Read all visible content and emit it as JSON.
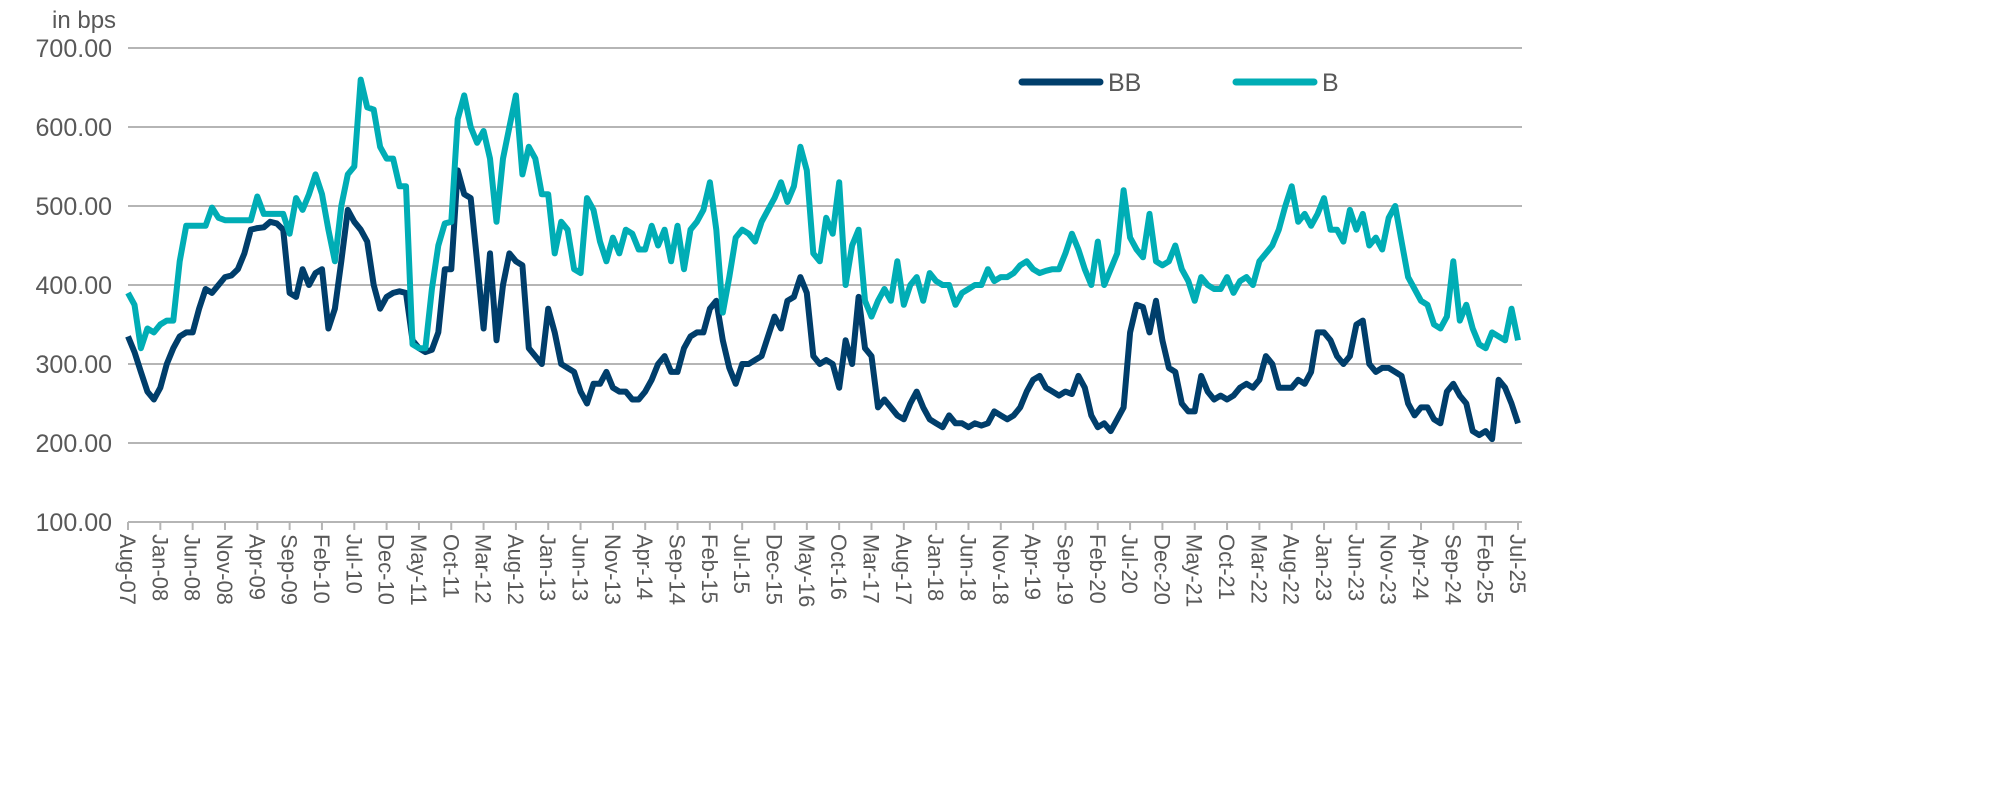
{
  "chart_data": {
    "type": "line",
    "title": "",
    "ylabel": "in bps",
    "xlabel": "",
    "ylim": [
      100,
      700
    ],
    "yticks": [
      "100.00",
      "200.00",
      "300.00",
      "400.00",
      "500.00",
      "600.00",
      "700.00"
    ],
    "grid": true,
    "legend_position": "top-right",
    "x_start": "Aug-07",
    "x_end": "Jul-25",
    "x_frequency": "monthly",
    "xtick_labels": [
      "Aug-07",
      "Jan-08",
      "Jun-08",
      "Nov-08",
      "Apr-09",
      "Sep-09",
      "Feb-10",
      "Jul-10",
      "Dec-10",
      "May-11",
      "Oct-11",
      "Mar-12",
      "Aug-12",
      "Jan-13",
      "Jun-13",
      "Nov-13",
      "Apr-14",
      "Sep-14",
      "Feb-15",
      "Jul-15",
      "Dec-15",
      "May-16",
      "Oct-16",
      "Mar-17",
      "Aug-17",
      "Jan-18",
      "Jun-18",
      "Nov-18",
      "Apr-19",
      "Sep-19",
      "Feb-20",
      "Jul-20",
      "Dec-20",
      "May-21",
      "Oct-21",
      "Mar-22",
      "Aug-22",
      "Jan-23",
      "Jun-23",
      "Nov-23",
      "Apr-24",
      "Sep-24",
      "Feb-25",
      "Jul-25"
    ],
    "series": [
      {
        "name": "BB",
        "color": "#003e6b",
        "values": [
          335,
          315,
          290,
          265,
          255,
          270,
          300,
          320,
          335,
          340,
          340,
          370,
          395,
          390,
          400,
          410,
          412,
          420,
          440,
          470,
          472,
          473,
          480,
          478,
          470,
          390,
          385,
          420,
          400,
          415,
          420,
          345,
          370,
          430,
          495,
          480,
          470,
          455,
          400,
          370,
          385,
          390,
          392,
          390,
          330,
          320,
          315,
          318,
          340,
          420,
          420,
          545,
          515,
          510,
          430,
          345,
          440,
          330,
          400,
          440,
          430,
          425,
          320,
          310,
          300,
          370,
          340,
          300,
          295,
          290,
          265,
          250,
          275,
          275,
          290,
          270,
          265,
          265,
          255,
          255,
          265,
          280,
          300,
          310,
          290,
          290,
          320,
          335,
          340,
          340,
          370,
          380,
          330,
          295,
          275,
          300,
          300,
          305,
          310,
          335,
          360,
          345,
          380,
          385,
          410,
          390,
          310,
          300,
          305,
          300,
          270,
          330,
          300,
          385,
          320,
          310,
          245,
          255,
          245,
          235,
          230,
          250,
          265,
          245,
          230,
          225,
          220,
          235,
          225,
          225,
          220,
          225,
          222,
          225,
          240,
          235,
          230,
          235,
          245,
          265,
          280,
          285,
          270,
          265,
          260,
          265,
          262,
          285,
          270,
          235,
          220,
          225,
          215,
          230,
          245,
          340,
          375,
          372,
          340,
          380,
          330,
          295,
          290,
          250,
          240,
          240,
          285,
          265,
          255,
          260,
          255,
          260,
          270,
          275,
          270,
          280,
          310,
          300,
          270,
          270,
          270,
          280,
          275,
          290,
          340,
          340,
          330,
          310,
          300,
          310,
          350,
          355,
          300,
          290,
          295,
          295,
          290,
          285,
          250,
          235,
          245,
          245,
          230,
          225,
          265,
          275,
          260,
          250,
          215,
          210,
          215,
          205,
          280,
          270,
          250,
          225
        ]
      },
      {
        "name": "B",
        "color": "#00adb5",
        "values": [
          390,
          375,
          320,
          345,
          340,
          350,
          355,
          355,
          430,
          475,
          475,
          475,
          475,
          498,
          485,
          482,
          482,
          482,
          482,
          482,
          512,
          490,
          490,
          490,
          490,
          465,
          510,
          495,
          515,
          540,
          515,
          470,
          430,
          500,
          540,
          550,
          660,
          625,
          622,
          575,
          560,
          560,
          525,
          525,
          325,
          320,
          320,
          395,
          450,
          478,
          480,
          610,
          640,
          600,
          580,
          595,
          560,
          480,
          560,
          600,
          640,
          540,
          575,
          560,
          515,
          515,
          440,
          480,
          470,
          420,
          415,
          510,
          495,
          455,
          430,
          460,
          440,
          470,
          465,
          445,
          445,
          475,
          450,
          470,
          430,
          475,
          420,
          470,
          480,
          495,
          530,
          470,
          365,
          410,
          460,
          470,
          465,
          455,
          480,
          495,
          510,
          530,
          505,
          525,
          575,
          545,
          440,
          430,
          485,
          465,
          530,
          400,
          450,
          470,
          380,
          360,
          380,
          395,
          380,
          430,
          375,
          400,
          410,
          380,
          415,
          405,
          400,
          400,
          375,
          390,
          395,
          400,
          400,
          420,
          405,
          410,
          410,
          415,
          425,
          430,
          420,
          415,
          418,
          420,
          420,
          440,
          465,
          445,
          420,
          400,
          455,
          400,
          420,
          440,
          520,
          460,
          445,
          435,
          490,
          430,
          425,
          430,
          450,
          420,
          405,
          380,
          410,
          400,
          395,
          395,
          410,
          390,
          405,
          410,
          400,
          430,
          440,
          450,
          470,
          500,
          525,
          480,
          490,
          475,
          490,
          510,
          470,
          470,
          455,
          495,
          470,
          490,
          450,
          460,
          445,
          485,
          500,
          455,
          410,
          395,
          380,
          375,
          350,
          345,
          360,
          430,
          355,
          375,
          345,
          325,
          320,
          340,
          335,
          330,
          370,
          330
        ]
      }
    ]
  }
}
